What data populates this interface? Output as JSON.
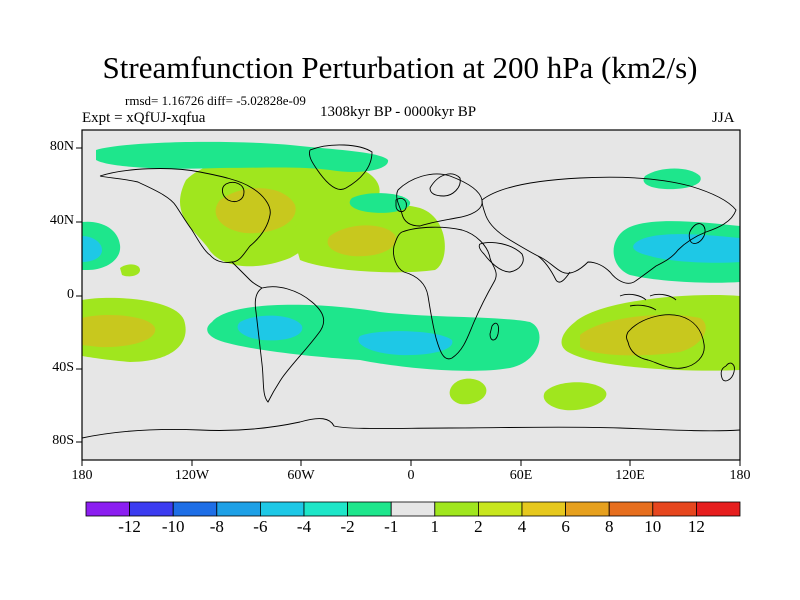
{
  "header": {
    "title": "Streamfunction Perturbation at 200 hPa (km2/s)",
    "stats": "rmsd= 1.16726 diff= -5.02828e-09",
    "experiment": "Expt = xQfUJ-xqfua",
    "period": "1308kyr BP - 0000kyr BP",
    "season": "JJA"
  },
  "axes": {
    "lat_labels": [
      "80N",
      "40N",
      "0",
      "40S",
      "80S"
    ],
    "lon_labels": [
      "180",
      "120W",
      "60W",
      "0",
      "60E",
      "120E",
      "180"
    ]
  },
  "colorbar": {
    "labels": [
      "-12",
      "-10",
      "-8",
      "-6",
      "-4",
      "-2",
      "-1",
      "1",
      "2",
      "4",
      "6",
      "8",
      "10",
      "12"
    ],
    "colors": [
      "#8b1ef0",
      "#3c3cf0",
      "#1e6ee6",
      "#1ea0e6",
      "#1ec8e6",
      "#1ee6c8",
      "#1ee68c",
      "#e6e6e6",
      "#a0e61e",
      "#c8e61e",
      "#e6c81e",
      "#e6a01e",
      "#e66e1e",
      "#e6461e",
      "#e61e1e"
    ]
  },
  "colors": {
    "background": "#e6e6e6",
    "neg1": "#1ee68c",
    "neg2": "#1ec8e6",
    "pos1": "#a0e61e",
    "pos2": "#c8c81e"
  }
}
